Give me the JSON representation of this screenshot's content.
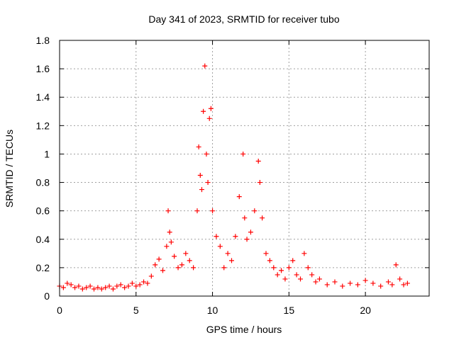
{
  "chart_data": {
    "type": "scatter",
    "title": "Day 341 of 2023, SRMTID for receiver tubo",
    "xlabel": "GPS time / hours",
    "ylabel": "SRMTID / TECUs",
    "xlim": [
      0,
      24.17
    ],
    "ylim": [
      0,
      1.8
    ],
    "xticks": [
      0,
      5,
      10,
      15,
      20
    ],
    "xtick_labels": [
      "0",
      "5",
      "10",
      "15",
      "20"
    ],
    "yticks": [
      0,
      0.2,
      0.4,
      0.6,
      0.8,
      1.0,
      1.2,
      1.4,
      1.6,
      1.8
    ],
    "ytick_labels": [
      "0",
      "0.2",
      "0.4",
      "0.6",
      "0.8",
      "1",
      "1.2",
      "1.4",
      "1.6",
      "1.8"
    ],
    "grid": true,
    "marker": "+",
    "series": [
      {
        "name": "SRMTID",
        "color": "#ff0000",
        "x": [
          0.0,
          0.25,
          0.5,
          0.75,
          1.0,
          1.25,
          1.5,
          1.75,
          2.0,
          2.25,
          2.5,
          2.75,
          3.0,
          3.25,
          3.5,
          3.75,
          4.0,
          4.25,
          4.5,
          4.75,
          5.0,
          5.25,
          5.5,
          5.75,
          6.0,
          6.25,
          6.5,
          6.75,
          7.0,
          7.1,
          7.2,
          7.3,
          7.5,
          7.75,
          8.0,
          8.25,
          8.5,
          8.75,
          9.0,
          9.1,
          9.2,
          9.3,
          9.4,
          9.5,
          9.6,
          9.7,
          9.8,
          9.9,
          10.0,
          10.25,
          10.5,
          10.75,
          11.0,
          11.25,
          11.5,
          11.75,
          12.0,
          12.1,
          12.25,
          12.5,
          12.75,
          13.0,
          13.1,
          13.25,
          13.5,
          13.75,
          14.0,
          14.25,
          14.5,
          14.75,
          15.0,
          15.25,
          15.5,
          15.75,
          16.0,
          16.25,
          16.5,
          16.75,
          17.0,
          17.5,
          18.0,
          18.5,
          19.0,
          19.5,
          20.0,
          20.5,
          21.0,
          21.5,
          21.75,
          22.0,
          22.25,
          22.5,
          22.75
        ],
        "y": [
          0.07,
          0.06,
          0.09,
          0.08,
          0.06,
          0.07,
          0.05,
          0.06,
          0.07,
          0.05,
          0.06,
          0.05,
          0.06,
          0.07,
          0.05,
          0.07,
          0.08,
          0.06,
          0.07,
          0.09,
          0.07,
          0.08,
          0.1,
          0.09,
          0.14,
          0.22,
          0.26,
          0.18,
          0.35,
          0.6,
          0.45,
          0.38,
          0.28,
          0.2,
          0.22,
          0.3,
          0.25,
          0.2,
          0.6,
          1.05,
          0.85,
          0.75,
          1.3,
          1.62,
          1.0,
          0.8,
          1.25,
          1.32,
          0.6,
          0.42,
          0.35,
          0.2,
          0.3,
          0.25,
          0.42,
          0.7,
          1.0,
          0.55,
          0.4,
          0.45,
          0.6,
          0.95,
          0.8,
          0.55,
          0.3,
          0.25,
          0.2,
          0.15,
          0.18,
          0.12,
          0.2,
          0.25,
          0.15,
          0.12,
          0.3,
          0.2,
          0.15,
          0.1,
          0.12,
          0.08,
          0.1,
          0.07,
          0.09,
          0.08,
          0.11,
          0.09,
          0.07,
          0.1,
          0.08,
          0.22,
          0.12,
          0.08,
          0.09
        ]
      }
    ]
  }
}
